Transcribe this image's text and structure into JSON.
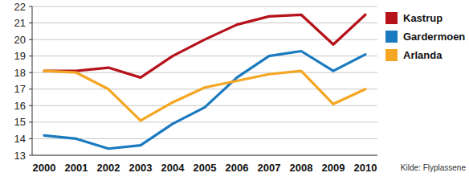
{
  "chart_data": {
    "type": "line",
    "categories": [
      "2000",
      "2001",
      "2002",
      "2003",
      "2004",
      "2005",
      "2006",
      "2007",
      "2008",
      "2009",
      "2010"
    ],
    "series": [
      {
        "name": "Kastrup",
        "color": "#b5121b",
        "values": [
          18.1,
          18.1,
          18.3,
          17.7,
          19.0,
          20.0,
          20.9,
          21.4,
          21.5,
          19.7,
          21.5
        ]
      },
      {
        "name": "Gardermoen",
        "color": "#1a7abf",
        "values": [
          14.2,
          14.0,
          13.4,
          13.6,
          14.9,
          15.9,
          17.7,
          19.0,
          19.3,
          18.1,
          19.1
        ]
      },
      {
        "name": "Arlanda",
        "color": "#f5a623",
        "values": [
          18.1,
          18.0,
          17.0,
          15.1,
          16.2,
          17.1,
          17.5,
          17.9,
          18.1,
          16.1,
          17.0
        ]
      }
    ],
    "ylim": [
      13,
      22
    ],
    "yticks": [
      13,
      14,
      15,
      16,
      17,
      18,
      19,
      20,
      21,
      22
    ],
    "grid": true,
    "legend": "right",
    "source": "Kilde: Flyplassene"
  }
}
